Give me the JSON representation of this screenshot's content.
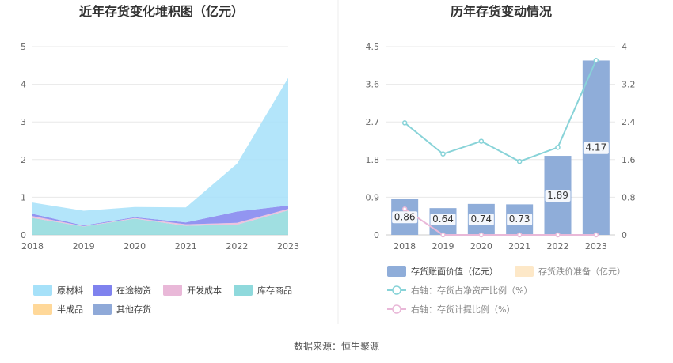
{
  "source": "数据来源：恒生聚源",
  "chart_data": [
    {
      "type": "area",
      "stacked": true,
      "title": "近年存货变化堆积图（亿元）",
      "categories": [
        "2018",
        "2019",
        "2020",
        "2021",
        "2022",
        "2023"
      ],
      "ylim": [
        0,
        5
      ],
      "yticks": [
        "0",
        "1",
        "2",
        "3",
        "4",
        "5"
      ],
      "grid": true,
      "legend_position": "bottom",
      "series": [
        {
          "name": "库存商品",
          "color": "#8fd9dc",
          "values": [
            0.45,
            0.22,
            0.43,
            0.24,
            0.27,
            0.65
          ]
        },
        {
          "name": "开发成本",
          "color": "#e9b8d8",
          "values": [
            0.05,
            0.01,
            0.02,
            0.04,
            0.05,
            0.04
          ]
        },
        {
          "name": "在途物资",
          "color": "#7f82ee",
          "values": [
            0.06,
            0.02,
            0.02,
            0.05,
            0.3,
            0.09
          ]
        },
        {
          "name": "原材料",
          "color": "#a6e1f9",
          "values": [
            0.3,
            0.39,
            0.27,
            0.4,
            1.27,
            3.39
          ]
        },
        {
          "name": "半成品",
          "color": "#ffd899",
          "values": [
            0,
            0,
            0,
            0,
            0,
            0
          ]
        },
        {
          "name": "其他存货",
          "color": "#8fa9d8",
          "values": [
            0,
            0,
            0,
            0,
            0,
            0
          ]
        }
      ],
      "legend": [
        "原材料",
        "在途物资",
        "开发成本",
        "库存商品",
        "半成品",
        "其他存货"
      ]
    },
    {
      "type": "bar",
      "title": "历年存货变动情况",
      "categories": [
        "2018",
        "2019",
        "2020",
        "2021",
        "2022",
        "2023"
      ],
      "ylim": [
        0,
        4.5
      ],
      "yticks": [
        "0",
        "0.9",
        "1.8",
        "2.7",
        "3.6",
        "4.5"
      ],
      "y2lim": [
        0,
        4
      ],
      "y2ticks": [
        "0",
        "0.8",
        "1.6",
        "2.4",
        "3.2",
        "4"
      ],
      "grid": true,
      "legend_position": "bottom",
      "bars": {
        "name": "存货账面价值（亿元）",
        "color": "#8fadd9",
        "values": [
          0.86,
          0.64,
          0.74,
          0.73,
          1.89,
          4.17
        ],
        "labels": [
          "0.86",
          "0.64",
          "0.74",
          "0.73",
          "1.89",
          "4.17"
        ]
      },
      "bars_empty": {
        "name": "存货跌价准备（亿元）",
        "color": "#fde8c8"
      },
      "lines": [
        {
          "name": "右轴：存货占净资产比例（%）",
          "color": "#88d3d8",
          "axis": "right",
          "values": [
            2.38,
            1.72,
            1.99,
            1.56,
            1.86,
            3.71
          ]
        },
        {
          "name": "右轴：存货计提比例（%）",
          "color": "#e9b8d8",
          "axis": "right",
          "values": [
            0.55,
            0,
            0,
            0,
            0,
            0
          ]
        }
      ]
    }
  ]
}
